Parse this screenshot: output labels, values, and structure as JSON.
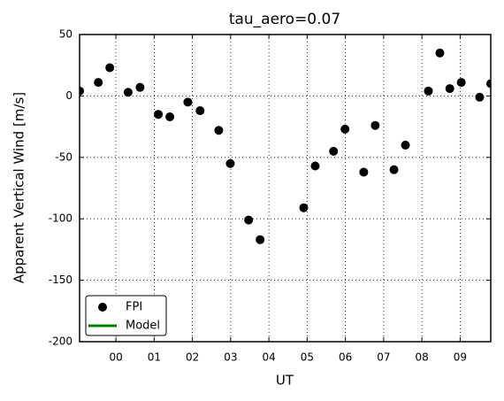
{
  "chart_data": {
    "type": "scatter",
    "title": "tau_aero=0.07",
    "xlabel": "UT",
    "ylabel": "Apparent Vertical Wind [m/s]",
    "series": [
      {
        "name": "FPI",
        "color": "#000000",
        "x": [
          -0.95,
          -0.46,
          -0.16,
          0.32,
          0.63,
          1.11,
          1.41,
          1.88,
          2.2,
          2.69,
          2.99,
          3.47,
          3.77,
          4.91,
          5.21,
          5.69,
          5.99,
          6.48,
          6.78,
          7.27,
          7.57,
          8.17,
          8.47,
          8.73,
          9.03,
          9.51,
          9.8
        ],
        "values": [
          4,
          11,
          23,
          3,
          7,
          -15,
          -17,
          -5,
          -12,
          -28,
          -55,
          -101,
          -117,
          -91,
          -57,
          -45,
          -27,
          -62,
          -24,
          -60,
          -40,
          4,
          35,
          6,
          11,
          -1,
          10
        ]
      },
      {
        "name": "Model",
        "color": "#008000",
        "x": [],
        "values": []
      }
    ],
    "xlim": [
      -0.95,
      9.8
    ],
    "xticks": [
      {
        "value": 0,
        "label": "00"
      },
      {
        "value": 1,
        "label": "01"
      },
      {
        "value": 2,
        "label": "02"
      },
      {
        "value": 3,
        "label": "03"
      },
      {
        "value": 4,
        "label": "04"
      },
      {
        "value": 5,
        "label": "05"
      },
      {
        "value": 6,
        "label": "06"
      },
      {
        "value": 7,
        "label": "07"
      },
      {
        "value": 8,
        "label": "08"
      },
      {
        "value": 9,
        "label": "09"
      }
    ],
    "ylim": [
      -200,
      50
    ],
    "yticks": [
      -200,
      -150,
      -100,
      -50,
      0,
      50
    ],
    "grid": true,
    "legend": "lower left"
  }
}
